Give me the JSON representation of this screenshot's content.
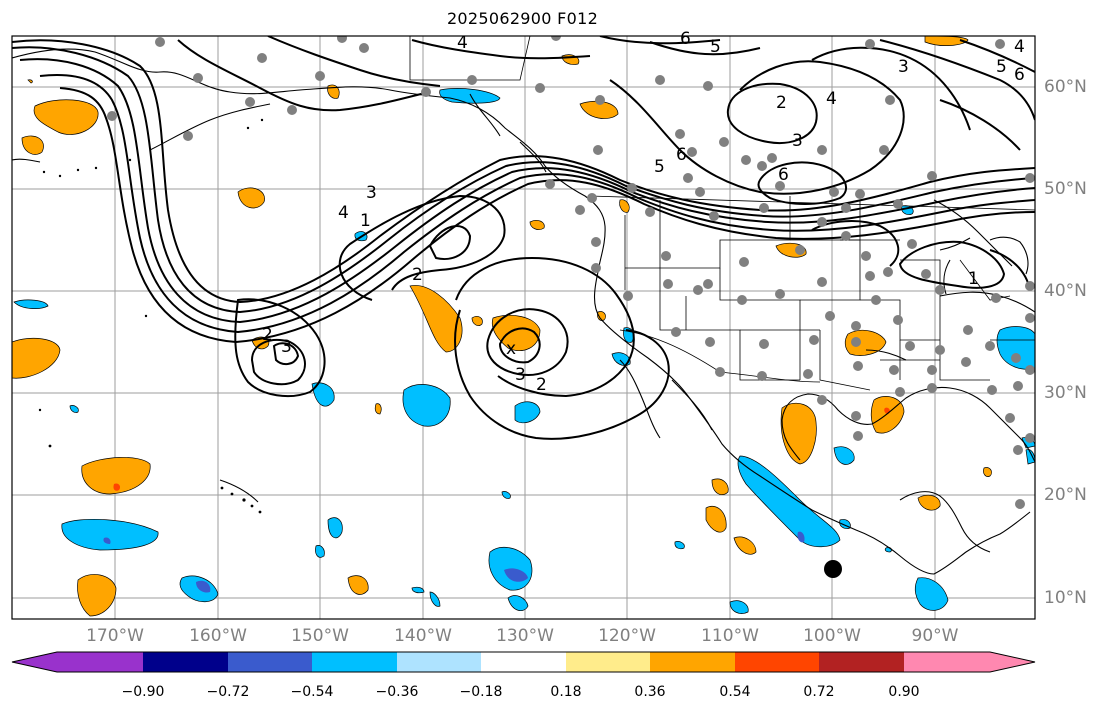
{
  "title": "2025062900 F012",
  "lon_labels": [
    "170°W",
    "160°W",
    "150°W",
    "140°W",
    "130°W",
    "120°W",
    "110°W",
    "100°W",
    "90°W"
  ],
  "lat_labels": [
    "60°N",
    "50°N",
    "40°N",
    "30°N",
    "20°N",
    "10°N"
  ],
  "colorbar": {
    "tick_labels": [
      "−0.90",
      "−0.72",
      "−0.54",
      "−0.36",
      "−0.18",
      "0.18",
      "0.36",
      "0.54",
      "0.72",
      "0.90"
    ],
    "colors": [
      "#9932cc",
      "#00008b",
      "#3a5bcd",
      "#00bfff",
      "#aee3ff",
      "#ffffff",
      "#ffec8b",
      "#ffa500",
      "#ff4500",
      "#b22222",
      "#ff88b0"
    ]
  },
  "contour_labels": [
    "4",
    "5",
    "6",
    "6",
    "5",
    "3",
    "2",
    "4",
    "3",
    "6",
    "4",
    "6",
    "5",
    "4",
    "1",
    "2",
    "2",
    "3",
    "3",
    "2",
    "3",
    "x",
    "1"
  ],
  "marker_label": ""
}
